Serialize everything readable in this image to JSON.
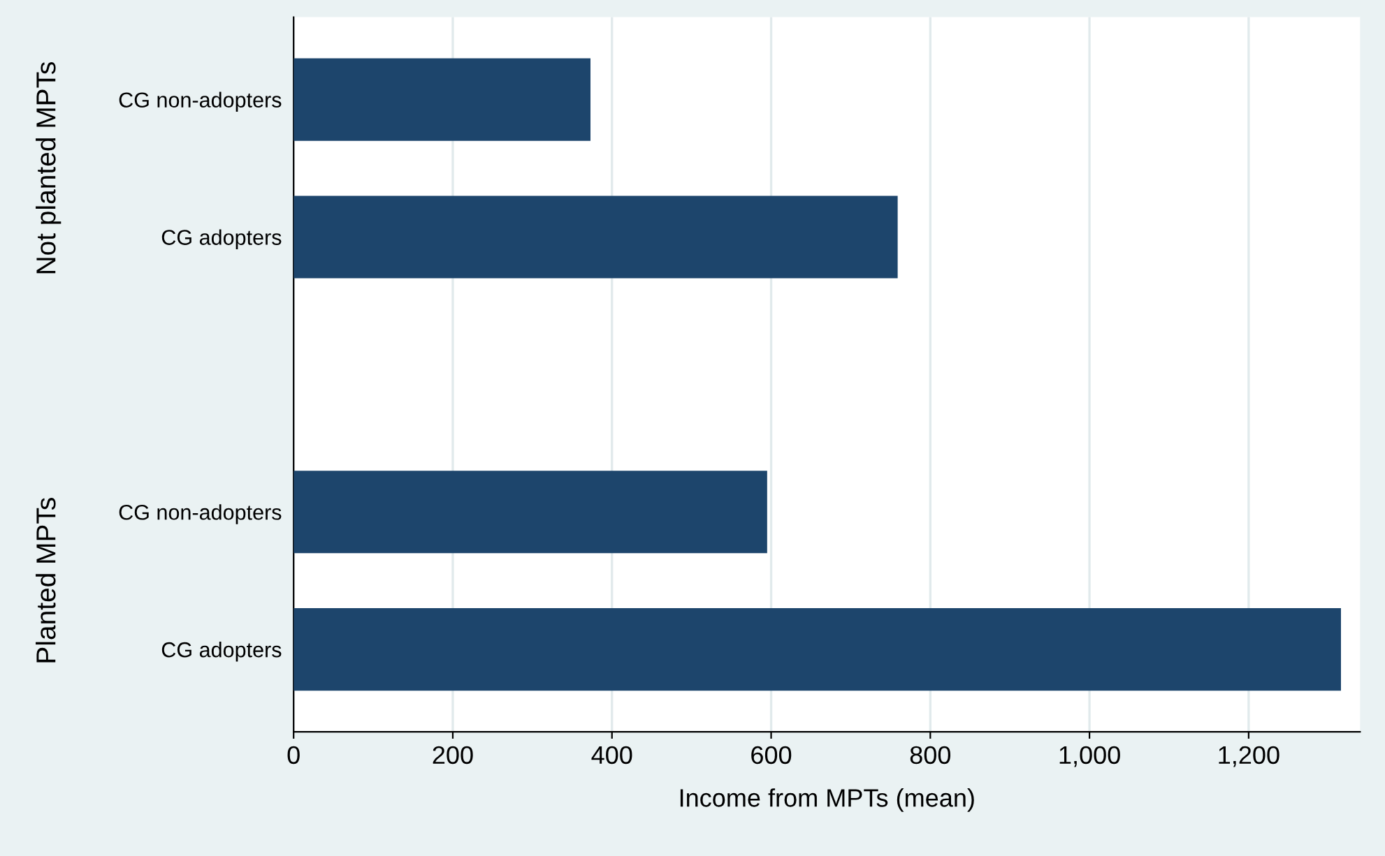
{
  "chart_data": {
    "type": "bar",
    "orientation": "horizontal",
    "xlabel": "Income from MPTs (mean)",
    "categories": [
      "CG non-adopters",
      "CG adopters",
      null,
      "CG non-adopters",
      "CG adopters"
    ],
    "values": [
      373,
      759,
      null,
      595,
      1316
    ],
    "color": "#1d456c",
    "xlim": [
      0,
      1340
    ],
    "xticks": [
      0,
      200,
      400,
      600,
      800,
      {
        "value": 1000,
        "label": "1,000"
      },
      {
        "value": 1200,
        "label": "1,200"
      }
    ],
    "grid": "x",
    "annotations": [
      "Not planted MPTs",
      "Planted MPTs"
    ]
  }
}
